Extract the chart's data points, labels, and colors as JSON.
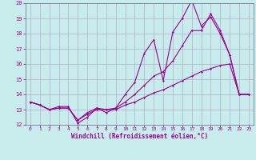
{
  "title": "",
  "xlabel": "Windchill (Refroidissement éolien,°C)",
  "ylabel": "",
  "bg_color": "#c8ecec",
  "grid_color": "#b0b0cc",
  "line_color": "#990099",
  "spine_color": "#666688",
  "xlim": [
    -0.5,
    23.5
  ],
  "ylim": [
    12,
    20
  ],
  "yticks": [
    12,
    13,
    14,
    15,
    16,
    17,
    18,
    19,
    20
  ],
  "xticks": [
    0,
    1,
    2,
    3,
    4,
    5,
    6,
    7,
    8,
    9,
    10,
    11,
    12,
    13,
    14,
    15,
    16,
    17,
    18,
    19,
    20,
    21,
    22,
    23
  ],
  "series": [
    {
      "x": [
        0,
        1,
        2,
        3,
        4,
        5,
        6,
        7,
        8,
        9,
        10,
        11,
        12,
        13,
        14,
        15,
        16,
        17,
        18,
        19,
        20,
        21,
        22,
        23
      ],
      "y": [
        13.5,
        13.3,
        13.0,
        13.2,
        13.2,
        12.1,
        12.5,
        13.1,
        12.8,
        13.1,
        14.0,
        14.8,
        16.7,
        17.6,
        14.9,
        18.1,
        19.0,
        20.2,
        18.5,
        19.1,
        18.0,
        16.6,
        14.0,
        14.0
      ]
    },
    {
      "x": [
        0,
        1,
        2,
        3,
        4,
        5,
        6,
        7,
        8,
        9,
        10,
        11,
        12,
        13,
        14,
        15,
        16,
        17,
        18,
        19,
        20,
        21,
        22,
        23
      ],
      "y": [
        13.5,
        13.3,
        13.0,
        13.1,
        13.1,
        12.3,
        12.7,
        13.0,
        13.0,
        13.0,
        13.3,
        13.5,
        13.8,
        14.1,
        14.3,
        14.6,
        14.9,
        15.2,
        15.5,
        15.7,
        15.9,
        16.0,
        14.0,
        14.0
      ]
    },
    {
      "x": [
        0,
        1,
        2,
        3,
        4,
        5,
        6,
        7,
        8,
        9,
        10,
        11,
        12,
        13,
        14,
        15,
        16,
        17,
        18,
        19,
        20,
        21,
        22,
        23
      ],
      "y": [
        13.5,
        13.3,
        13.0,
        13.1,
        13.1,
        12.3,
        12.8,
        13.1,
        13.0,
        13.1,
        13.5,
        14.0,
        14.6,
        15.2,
        15.5,
        16.2,
        17.2,
        18.2,
        18.2,
        19.3,
        18.2,
        16.6,
        14.0,
        14.0
      ]
    }
  ]
}
